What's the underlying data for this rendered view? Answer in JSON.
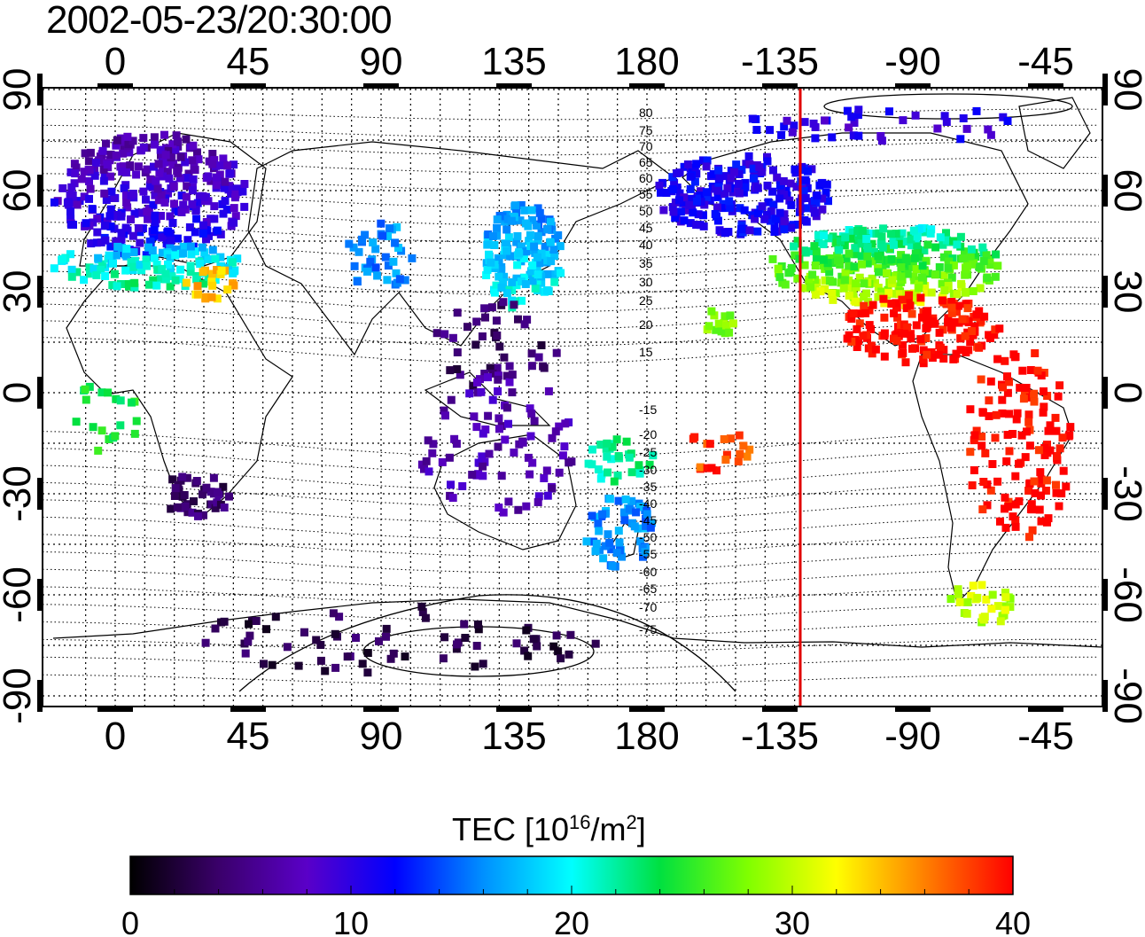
{
  "map": {
    "timestamp": "2002-05-23/20:30:00",
    "lon_ticks": [
      "0",
      "45",
      "90",
      "135",
      "180",
      "-135",
      "-90",
      "-45"
    ],
    "lat_ticks": [
      "90",
      "60",
      "30",
      "0",
      "-30",
      "-60",
      "-90"
    ],
    "contour_labels_north": [
      "80",
      "75",
      "70",
      "65",
      "60",
      "55",
      "50",
      "45",
      "40",
      "35",
      "30",
      "25",
      "20",
      "15"
    ],
    "contour_labels_south": [
      "-15",
      "-20",
      "-25",
      "-30",
      "-35",
      "-40",
      "-45",
      "-50",
      "-55",
      "-60",
      "-65",
      "-70",
      "-75"
    ],
    "terminator_line_longitude": -135,
    "terminator_color": "#e00000"
  },
  "colorbar": {
    "label_main": "TEC  [10",
    "label_exp1": "16",
    "label_mid": "/m",
    "label_exp2": "2",
    "label_end": "]",
    "ticks": [
      "0",
      "10",
      "20",
      "30",
      "40"
    ],
    "min": 0,
    "max": 40,
    "colors": [
      "#000000",
      "#3a006a",
      "#5a00c8",
      "#0000ff",
      "#0090ff",
      "#00ffff",
      "#00e040",
      "#80ff00",
      "#ffff00",
      "#ff8000",
      "#ff0000"
    ]
  }
}
